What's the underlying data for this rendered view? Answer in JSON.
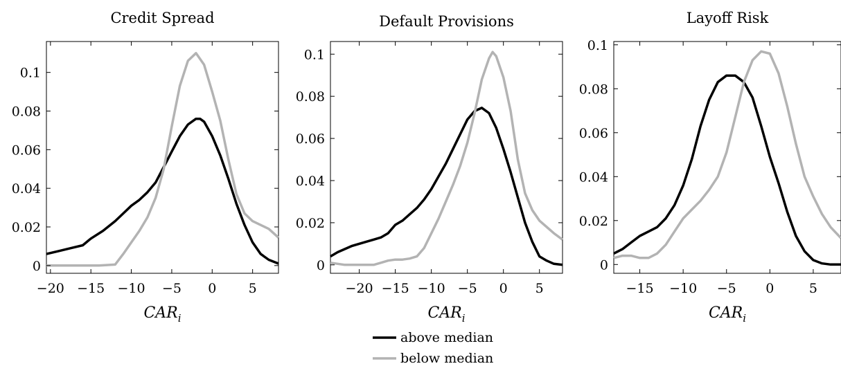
{
  "chart_data": [
    {
      "type": "line",
      "title": "Credit Spread",
      "xlabel": "CAR_i",
      "ylabel": "",
      "xlim": [
        -20.5,
        8.2
      ],
      "ylim": [
        -0.004,
        0.116
      ],
      "xticks": [
        -20,
        -15,
        -10,
        -5,
        0,
        5
      ],
      "yticks": [
        0,
        0.02,
        0.04,
        0.06,
        0.08,
        0.1
      ],
      "xtick_labels": [
        "−20",
        "−15",
        "−10",
        "−5",
        "0",
        "5"
      ],
      "ytick_labels": [
        "0",
        "0.02",
        "0.04",
        "0.06",
        "0.08",
        "0.1"
      ],
      "grid": false,
      "series": [
        {
          "name": "above median",
          "color": "#000000",
          "x": [
            -20.5,
            -19,
            -17.5,
            -16,
            -15,
            -13.5,
            -12,
            -11,
            -10,
            -9,
            -8,
            -7,
            -6,
            -5,
            -4,
            -3,
            -2,
            -1.5,
            -1,
            0,
            1,
            2,
            3,
            4,
            5,
            6,
            7,
            8.2
          ],
          "y": [
            0.006,
            0.0075,
            0.009,
            0.0105,
            0.014,
            0.018,
            0.023,
            0.027,
            0.031,
            0.034,
            0.038,
            0.043,
            0.051,
            0.059,
            0.067,
            0.073,
            0.076,
            0.076,
            0.0745,
            0.067,
            0.057,
            0.045,
            0.032,
            0.021,
            0.012,
            0.006,
            0.003,
            0.001
          ]
        },
        {
          "name": "below median",
          "color": "#b3b3b3",
          "x": [
            -20.5,
            -18,
            -16,
            -14,
            -12,
            -11,
            -10,
            -9,
            -8,
            -7,
            -6,
            -5,
            -4,
            -3,
            -2,
            -1,
            0,
            1,
            2,
            3,
            4,
            5,
            6,
            7,
            8.2
          ],
          "y": [
            0,
            0,
            0,
            0,
            0.0005,
            0.006,
            0.012,
            0.018,
            0.025,
            0.035,
            0.05,
            0.072,
            0.093,
            0.106,
            0.11,
            0.104,
            0.09,
            0.075,
            0.055,
            0.037,
            0.027,
            0.023,
            0.021,
            0.019,
            0.0145
          ]
        }
      ]
    },
    {
      "type": "line",
      "title": "Default Provisions",
      "xlabel": "CAR_i",
      "ylabel": "",
      "xlim": [
        -24,
        8.2
      ],
      "ylim": [
        -0.004,
        0.106
      ],
      "xticks": [
        -20,
        -15,
        -10,
        -5,
        0,
        5
      ],
      "yticks": [
        0,
        0.02,
        0.04,
        0.06,
        0.08,
        0.1
      ],
      "xtick_labels": [
        "−20",
        "−15",
        "−10",
        "−5",
        "0",
        "5"
      ],
      "ytick_labels": [
        "0",
        "0.02",
        "0.04",
        "0.06",
        "0.08",
        "0.1"
      ],
      "grid": false,
      "series": [
        {
          "name": "above median",
          "color": "#000000",
          "x": [
            -24,
            -23,
            -21,
            -19,
            -18,
            -17,
            -16,
            -15,
            -14,
            -13,
            -12,
            -11,
            -10,
            -9,
            -8,
            -7,
            -6,
            -5,
            -4,
            -3,
            -2,
            -1,
            0,
            1,
            2,
            3,
            4,
            5,
            6,
            7,
            8.2
          ],
          "y": [
            0.004,
            0.006,
            0.009,
            0.011,
            0.012,
            0.013,
            0.015,
            0.019,
            0.021,
            0.024,
            0.027,
            0.031,
            0.036,
            0.042,
            0.048,
            0.055,
            0.062,
            0.069,
            0.073,
            0.0745,
            0.072,
            0.065,
            0.055,
            0.044,
            0.032,
            0.02,
            0.011,
            0.004,
            0.002,
            0.0005,
            0
          ]
        },
        {
          "name": "below median",
          "color": "#b3b3b3",
          "x": [
            -24,
            -22,
            -20,
            -18,
            -17,
            -16,
            -15,
            -14,
            -13,
            -12,
            -11,
            -10,
            -9,
            -8,
            -7,
            -6,
            -5,
            -4,
            -3,
            -2,
            -1.5,
            -1,
            0,
            1,
            2,
            3,
            4,
            5,
            6,
            7,
            8.2
          ],
          "y": [
            0.001,
            0,
            0,
            0,
            0.001,
            0.002,
            0.0025,
            0.0025,
            0.003,
            0.004,
            0.008,
            0.015,
            0.022,
            0.03,
            0.038,
            0.047,
            0.058,
            0.072,
            0.088,
            0.098,
            0.101,
            0.099,
            0.089,
            0.073,
            0.05,
            0.034,
            0.026,
            0.021,
            0.018,
            0.015,
            0.012
          ]
        }
      ]
    },
    {
      "type": "line",
      "title": "Layoff Risk",
      "xlabel": "CAR_i",
      "ylabel": "",
      "xlim": [
        -18,
        8.2
      ],
      "ylim": [
        -0.004,
        0.1015
      ],
      "xticks": [
        -15,
        -10,
        -5,
        0,
        5
      ],
      "yticks": [
        0,
        0.02,
        0.04,
        0.06,
        0.08,
        0.1
      ],
      "xtick_labels": [
        "−15",
        "−10",
        "−5",
        "0",
        "5"
      ],
      "ytick_labels": [
        "0",
        "0.02",
        "0.04",
        "0.06",
        "0.08",
        "0.1"
      ],
      "grid": false,
      "series": [
        {
          "name": "above median",
          "color": "#000000",
          "x": [
            -18,
            -17,
            -16,
            -15,
            -14,
            -13,
            -12,
            -11,
            -10,
            -9,
            -8,
            -7,
            -6,
            -5,
            -4,
            -3,
            -2,
            -1,
            0,
            1,
            2,
            3,
            4,
            5,
            6,
            7,
            8.2
          ],
          "y": [
            0.005,
            0.007,
            0.01,
            0.013,
            0.015,
            0.017,
            0.021,
            0.027,
            0.036,
            0.048,
            0.063,
            0.075,
            0.083,
            0.086,
            0.086,
            0.083,
            0.076,
            0.063,
            0.049,
            0.037,
            0.024,
            0.013,
            0.006,
            0.002,
            0.0005,
            0,
            0
          ]
        },
        {
          "name": "below median",
          "color": "#b3b3b3",
          "x": [
            -18,
            -17,
            -16,
            -15,
            -14,
            -13,
            -12,
            -11,
            -10,
            -9,
            -8,
            -7,
            -6,
            -5,
            -4,
            -3,
            -2,
            -1,
            0,
            1,
            2,
            3,
            4,
            5,
            6,
            7,
            8.2
          ],
          "y": [
            0.003,
            0.004,
            0.004,
            0.003,
            0.003,
            0.005,
            0.009,
            0.015,
            0.021,
            0.025,
            0.029,
            0.034,
            0.04,
            0.051,
            0.067,
            0.083,
            0.093,
            0.097,
            0.096,
            0.087,
            0.072,
            0.055,
            0.04,
            0.031,
            0.023,
            0.017,
            0.012
          ]
        }
      ]
    }
  ],
  "legend": {
    "placement": "bottom-center",
    "entries": [
      {
        "label": "above median",
        "color": "#000000"
      },
      {
        "label": "below median",
        "color": "#b3b3b3"
      }
    ]
  }
}
